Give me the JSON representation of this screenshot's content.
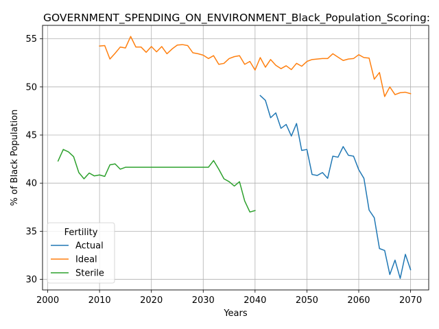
{
  "chart_data": {
    "type": "line",
    "title": "GOVERNMENT_SPENDING_ON_ENVIRONMENT_Black_Population_Scoring:",
    "xlabel": "Years",
    "ylabel": "% of Black Population",
    "xlim": [
      1999,
      2073.5
    ],
    "ylim": [
      28.9,
      56.4
    ],
    "xticks": [
      2000,
      2010,
      2020,
      2030,
      2040,
      2050,
      2060,
      2070
    ],
    "yticks": [
      30,
      35,
      40,
      45,
      50,
      55
    ],
    "grid": true,
    "legend": {
      "title": "Fertility",
      "placement": "lower-left"
    },
    "series": [
      {
        "name": "Actual",
        "color": "#1f77b4",
        "x": [
          2041,
          2042,
          2043,
          2044,
          2045,
          2046,
          2047,
          2048,
          2049,
          2050,
          2051,
          2052,
          2053,
          2054,
          2055,
          2056,
          2057,
          2058,
          2059,
          2060,
          2061,
          2062,
          2063,
          2064,
          2065,
          2066,
          2067,
          2068,
          2069,
          2070
        ],
        "y": [
          49.1,
          48.6,
          46.8,
          47.3,
          45.7,
          46.1,
          44.9,
          46.2,
          43.4,
          43.5,
          40.9,
          40.8,
          41.1,
          40.5,
          42.8,
          42.7,
          43.8,
          42.9,
          42.8,
          41.4,
          40.5,
          37.2,
          36.4,
          33.2,
          33.0,
          30.5,
          32.0,
          30.1,
          32.6,
          31.0
        ]
      },
      {
        "name": "Ideal",
        "color": "#ff7f0e",
        "x": [
          2010,
          2011,
          2012,
          2013,
          2014,
          2015,
          2016,
          2017,
          2018,
          2019,
          2020,
          2021,
          2022,
          2023,
          2024,
          2025,
          2026,
          2027,
          2028,
          2029,
          2030,
          2031,
          2032,
          2033,
          2034,
          2035,
          2036,
          2037,
          2038,
          2039,
          2040,
          2041,
          2042,
          2043,
          2044,
          2045,
          2046,
          2047,
          2048,
          2049,
          2050,
          2051,
          2052,
          2053,
          2054,
          2055,
          2056,
          2057,
          2058,
          2059,
          2060,
          2061,
          2062,
          2063,
          2064,
          2065,
          2066,
          2067,
          2068,
          2069,
          2070
        ],
        "y": [
          54.25,
          54.3,
          52.9,
          53.5,
          54.15,
          54.05,
          55.25,
          54.15,
          54.15,
          53.6,
          54.2,
          53.65,
          54.2,
          53.45,
          53.95,
          54.35,
          54.4,
          54.3,
          53.55,
          53.45,
          53.3,
          52.95,
          53.25,
          52.35,
          52.45,
          52.95,
          53.15,
          53.25,
          52.35,
          52.65,
          51.75,
          53.05,
          52.05,
          52.85,
          52.25,
          51.9,
          52.2,
          51.8,
          52.45,
          52.15,
          52.65,
          52.85,
          52.9,
          52.95,
          52.95,
          53.45,
          53.1,
          52.75,
          52.9,
          52.95,
          53.35,
          53.05,
          53.0,
          50.8,
          51.5,
          49.0,
          50.0,
          49.2,
          49.4,
          49.45,
          49.3
        ]
      },
      {
        "name": "Sterile",
        "color": "#2ca02c",
        "x": [
          2002,
          2003,
          2004,
          2005,
          2006,
          2007,
          2008,
          2009,
          2010,
          2011,
          2012,
          2013,
          2014,
          2015,
          2016,
          2017,
          2018,
          2019,
          2020,
          2021,
          2022,
          2023,
          2024,
          2025,
          2026,
          2027,
          2028,
          2029,
          2030,
          2031,
          2032,
          2033,
          2034,
          2035,
          2036,
          2037,
          2038,
          2039,
          2040
        ],
        "y": [
          42.3,
          43.5,
          43.25,
          42.75,
          41.1,
          40.45,
          41.05,
          40.75,
          40.85,
          40.7,
          41.9,
          42.0,
          41.45,
          41.65,
          41.65,
          41.65,
          41.65,
          41.65,
          41.65,
          41.65,
          41.65,
          41.65,
          41.65,
          41.65,
          41.65,
          41.65,
          41.65,
          41.65,
          41.65,
          41.65,
          42.35,
          41.45,
          40.45,
          40.15,
          39.7,
          40.15,
          38.15,
          37.0,
          37.15
        ]
      }
    ]
  }
}
